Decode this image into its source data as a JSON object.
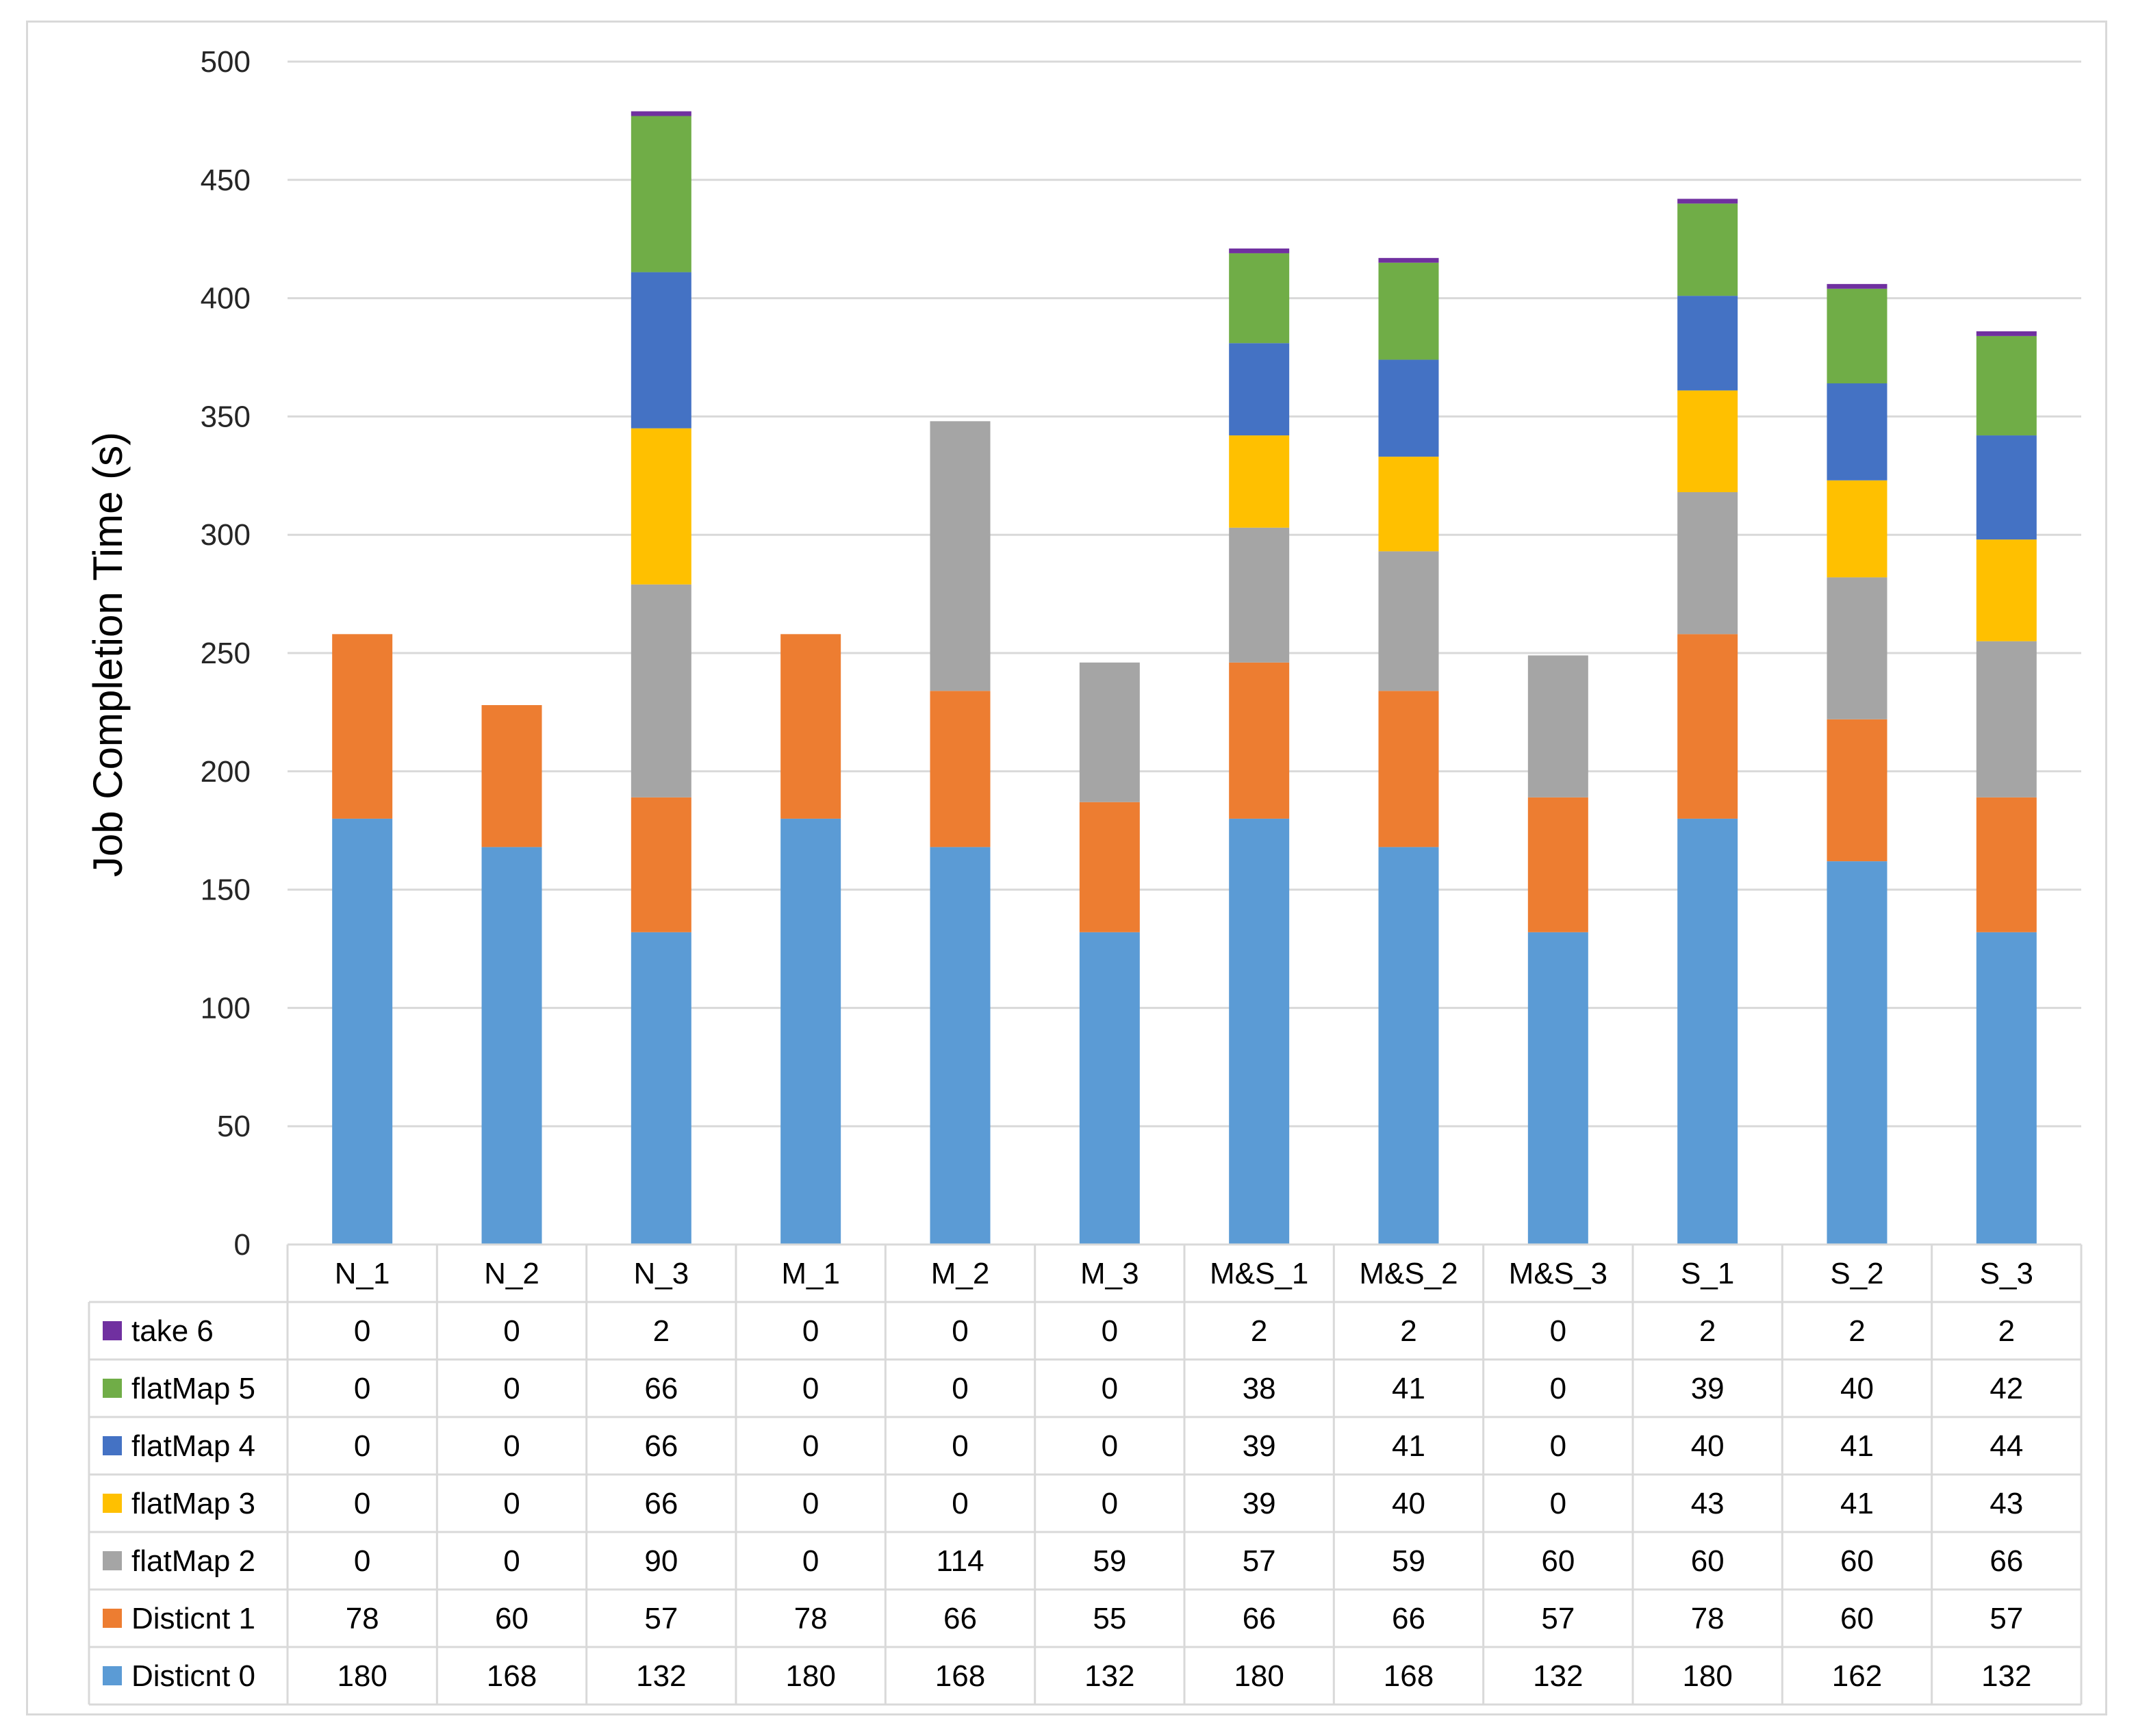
{
  "chart_data": {
    "type": "bar",
    "stacked": true,
    "title": "",
    "xlabel": "",
    "ylabel": "Job Completion Time (s)",
    "ylim": [
      0,
      500
    ],
    "ytick_step": 50,
    "grid": true,
    "legend_placement": "data-table-left",
    "categories": [
      "N_1",
      "N_2",
      "N_3",
      "M_1",
      "M_2",
      "M_3",
      "M&S_1",
      "M&S_2",
      "M&S_3",
      "S_1",
      "S_2",
      "S_3"
    ],
    "series": [
      {
        "name": "Disticnt 0",
        "color": "#5B9BD5",
        "values": [
          180,
          168,
          132,
          180,
          168,
          132,
          180,
          168,
          132,
          180,
          162,
          132
        ]
      },
      {
        "name": "Disticnt 1",
        "color": "#ED7D31",
        "values": [
          78,
          60,
          57,
          78,
          66,
          55,
          66,
          66,
          57,
          78,
          60,
          57
        ]
      },
      {
        "name": "flatMap 2",
        "color": "#A5A5A5",
        "values": [
          0,
          0,
          90,
          0,
          114,
          59,
          57,
          59,
          60,
          60,
          60,
          66
        ]
      },
      {
        "name": "flatMap 3",
        "color": "#FFC000",
        "values": [
          0,
          0,
          66,
          0,
          0,
          0,
          39,
          40,
          0,
          43,
          41,
          43
        ]
      },
      {
        "name": "flatMap 4",
        "color": "#4472C4",
        "values": [
          0,
          0,
          66,
          0,
          0,
          0,
          39,
          41,
          0,
          40,
          41,
          44
        ]
      },
      {
        "name": "flatMap 5",
        "color": "#70AD47",
        "values": [
          0,
          0,
          66,
          0,
          0,
          0,
          38,
          41,
          0,
          39,
          40,
          42
        ]
      },
      {
        "name": "take 6",
        "color": "#7030A0",
        "values": [
          0,
          0,
          2,
          0,
          0,
          0,
          2,
          2,
          0,
          2,
          2,
          2
        ]
      }
    ]
  }
}
